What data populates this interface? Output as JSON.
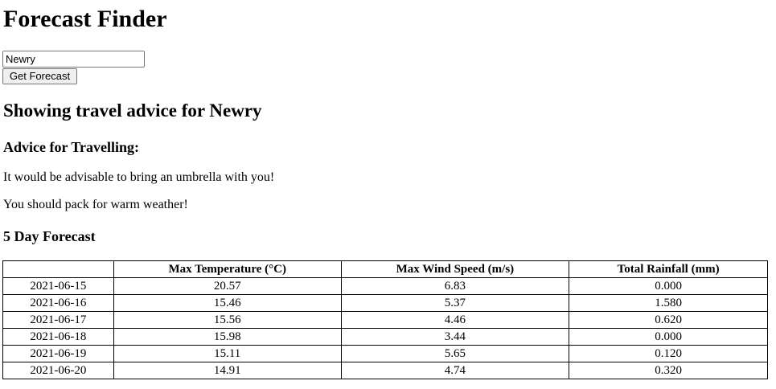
{
  "app": {
    "title": "Forecast Finder"
  },
  "search": {
    "value": "Newry",
    "button_label": "Get Forecast"
  },
  "results": {
    "heading": "Showing travel advice for Newry",
    "advice_heading": "Advice for Travelling:",
    "advice": [
      "It would be advisable to bring an umbrella with you!",
      "You should pack for warm weather!"
    ],
    "forecast_heading": "5 Day Forecast"
  },
  "table": {
    "headers": [
      "",
      "Max Temperature (°C)",
      "Max Wind Speed (m/s)",
      "Total Rainfall (mm)"
    ],
    "rows": [
      [
        "2021-06-15",
        "20.57",
        "6.83",
        "0.000"
      ],
      [
        "2021-06-16",
        "15.46",
        "5.37",
        "1.580"
      ],
      [
        "2021-06-17",
        "15.56",
        "4.46",
        "0.620"
      ],
      [
        "2021-06-18",
        "15.98",
        "3.44",
        "0.000"
      ],
      [
        "2021-06-19",
        "15.11",
        "5.65",
        "0.120"
      ],
      [
        "2021-06-20",
        "14.91",
        "4.74",
        "0.320"
      ]
    ]
  }
}
